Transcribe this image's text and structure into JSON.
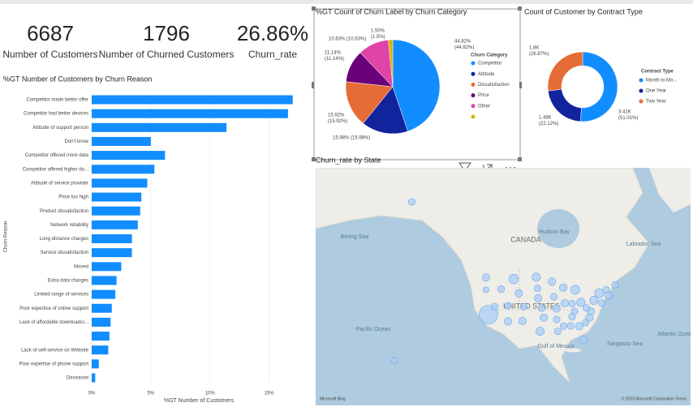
{
  "cards": [
    {
      "value": "6687",
      "label": "Number of Customers"
    },
    {
      "value": "1796",
      "label": "Number of Churned Customers"
    },
    {
      "value": "26.86%",
      "label": "Churn_rate"
    }
  ],
  "chart_data": [
    {
      "type": "bar",
      "title": "%GT Number of Customers by Churn Reason",
      "x_label": "%GT Number of Customers",
      "y_label": "Churn Reason",
      "color": "#118dff",
      "categories": [
        "Competitor made better offer",
        "Competitor had better devices",
        "Attitude of support person",
        "Don't know",
        "Competitor offered more data",
        "Competitor offered higher do...",
        "Attitude of service provider",
        "Price too high",
        "Product dissatisfaction",
        "Network reliability",
        "Long distance charges",
        "Service dissatisfaction",
        "Moved",
        "Extra data charges",
        "Limited range of services",
        "Poor expertise of online support",
        "Lack of affordable download/u...",
        null,
        "Lack of self-service on Website",
        "Poor expertise of phone support",
        "Deceased"
      ],
      "values": [
        17.0,
        16.6,
        11.4,
        5.0,
        6.2,
        5.3,
        4.7,
        4.2,
        4.1,
        3.9,
        3.4,
        3.4,
        2.5,
        2.1,
        2.0,
        1.7,
        1.6,
        1.5,
        1.4,
        0.6,
        0.3
      ],
      "xlim": [
        0,
        17.5
      ],
      "xticks": [
        {
          "value": 0,
          "label": "0%"
        },
        {
          "value": 5,
          "label": "5%"
        },
        {
          "value": 10,
          "label": "10%"
        },
        {
          "value": 15,
          "label": "15%"
        }
      ]
    },
    {
      "type": "pie",
      "title": "%GT Count of Churn Label by Churn Category",
      "legend_title": "Churn Category",
      "categories": [
        "Competitor",
        "Attitude",
        "Dissatisfaction",
        "Price",
        "Other",
        null
      ],
      "values": [
        44.82,
        15.98,
        15.92,
        11.14,
        10.63,
        1.5
      ],
      "value_labels": [
        [
          "44.82%",
          "(44.82%)"
        ],
        [
          "15.98% (15.98%)"
        ],
        [
          "15.92%",
          "(15.92%)"
        ],
        [
          "11.14%",
          "(11.14%)"
        ],
        [
          "10.63% (10.63%)"
        ],
        [
          "1.50%",
          "(1.5%)"
        ]
      ],
      "colors": [
        "#118dff",
        "#12239e",
        "#e66c37",
        "#6b007b",
        "#e044a7",
        "#d9b300"
      ]
    },
    {
      "type": "donut",
      "title": "Count of Customer by Contract Type",
      "legend_title": "Contract Type",
      "categories": [
        "Month to Mo...",
        "One Year",
        "Two Year"
      ],
      "values": [
        3410,
        1480,
        1800
      ],
      "value_labels": [
        [
          "3.41K",
          "(51.01%)"
        ],
        [
          "1.48K",
          "(22.12%)"
        ],
        [
          "1.8K",
          "(26.87%)"
        ]
      ],
      "colors": [
        "#118dff",
        "#12239e",
        "#e66c37"
      ]
    },
    {
      "type": "map",
      "title": "Churn_rate by State",
      "place_labels": [
        "CANADA",
        "UNITED STATES",
        "Hudson Bay",
        "Labrador Sea",
        "Bering Sea",
        "Pacific Ocean",
        "Atlantic Ocean",
        "Gulf of Mexico",
        "Sargasso Sea"
      ],
      "lon": [
        -119.5,
        -120.5,
        -120.5,
        -117,
        -114.5,
        -109.5,
        -107.5,
        -111.7,
        -111.7,
        -105.5,
        -106,
        -100.5,
        -100,
        -99.8,
        -98.4,
        -97.5,
        -99,
        -94.3,
        -93.5,
        -92.5,
        -92.4,
        -92,
        -89.8,
        -89.2,
        -85,
        -86.3,
        -82.8,
        -85.3,
        -86.3,
        -89.7,
        -86.8,
        -83.4,
        -81.7,
        -80.9,
        -79.4,
        -78.8,
        -80.6,
        -77.6,
        -75.5,
        -72.7,
        -69.2,
        -71.8,
        -74.5,
        -150,
        -157
      ],
      "lat": [
        36.5,
        47.4,
        44,
        39,
        44.2,
        47,
        43,
        39.3,
        34.3,
        39,
        34.4,
        47.5,
        44.4,
        41.5,
        38.5,
        35.5,
        31,
        46.3,
        42,
        38.4,
        34.9,
        31,
        44.6,
        40,
        44,
        39.9,
        40.3,
        37.5,
        35.8,
        32.7,
        32.8,
        32.7,
        28,
        33.9,
        35.5,
        37.5,
        38.6,
        40.9,
        43,
        44,
        45.4,
        42.3,
        40.1,
        64,
        20.5
      ],
      "values": [
        30,
        5,
        3,
        4,
        4,
        8,
        5,
        4,
        5,
        4,
        5,
        6,
        4,
        5,
        4,
        5,
        6,
        5,
        4,
        5,
        4,
        4,
        5,
        5,
        7,
        4,
        6,
        4,
        4,
        4,
        4,
        5,
        5,
        4,
        5,
        5,
        4,
        6,
        7,
        4,
        4,
        5,
        4,
        4,
        3
      ],
      "color": "#a9cdf5",
      "attribution": "© 2023 Microsoft Corporation  Terms",
      "logo": "Microsoft Bing"
    }
  ]
}
